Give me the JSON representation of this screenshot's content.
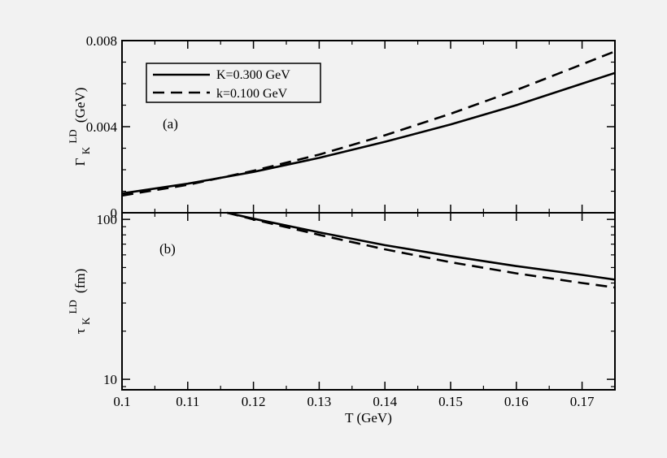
{
  "chart_data": [
    {
      "type": "line",
      "panel_label": "(a)",
      "ylabel_main": "Γ",
      "ylabel_sub": "K",
      "ylabel_sup": "LD",
      "ylabel_unit": "(GeV)",
      "xlim": [
        0.1,
        0.175
      ],
      "ylim": [
        0,
        0.008
      ],
      "y_ticks": [
        "0",
        "0.004",
        "0.008"
      ],
      "y_tick_values": [
        0,
        0.004,
        0.008
      ],
      "legend": "top-left",
      "series": [
        {
          "name": "K=0.300 GeV",
          "style": "solid",
          "x": [
            0.1,
            0.11,
            0.12,
            0.13,
            0.14,
            0.15,
            0.16,
            0.17,
            0.175
          ],
          "values": [
            0.0009,
            0.00135,
            0.0019,
            0.00255,
            0.0033,
            0.0041,
            0.005,
            0.006,
            0.0065
          ]
        },
        {
          "name": "k=0.100 GeV",
          "style": "dashed",
          "x": [
            0.1,
            0.11,
            0.12,
            0.13,
            0.14,
            0.15,
            0.16,
            0.17,
            0.175
          ],
          "values": [
            0.0008,
            0.0013,
            0.00195,
            0.0027,
            0.0036,
            0.0046,
            0.0057,
            0.0069,
            0.0075
          ]
        }
      ]
    },
    {
      "type": "line",
      "panel_label": "(b)",
      "ylabel_main": "τ",
      "ylabel_sub": "K",
      "ylabel_sup": "LD",
      "ylabel_unit": "(fm)",
      "xlabel": "T (GeV)",
      "xlim": [
        0.1,
        0.175
      ],
      "ylim": [
        8.6,
        110
      ],
      "y_scale": "log",
      "y_ticks": [
        "10",
        "100"
      ],
      "y_tick_values": [
        10,
        100
      ],
      "x_ticks": [
        "0.1",
        "0.11",
        "0.12",
        "0.13",
        "0.14",
        "0.15",
        "0.16",
        "0.17"
      ],
      "x_tick_values": [
        0.1,
        0.11,
        0.12,
        0.13,
        0.14,
        0.15,
        0.16,
        0.17
      ],
      "series": [
        {
          "name": "K=0.300 GeV",
          "style": "solid",
          "x": [
            0.116,
            0.12,
            0.13,
            0.14,
            0.15,
            0.16,
            0.17,
            0.175
          ],
          "values": [
            110,
            101,
            83,
            69,
            59,
            51,
            45,
            42
          ]
        },
        {
          "name": "k=0.100 GeV",
          "style": "dashed",
          "x": [
            0.116,
            0.12,
            0.13,
            0.14,
            0.15,
            0.16,
            0.17,
            0.175
          ],
          "values": [
            110,
            100,
            80,
            65,
            54,
            46,
            40,
            37.5
          ]
        }
      ]
    }
  ]
}
